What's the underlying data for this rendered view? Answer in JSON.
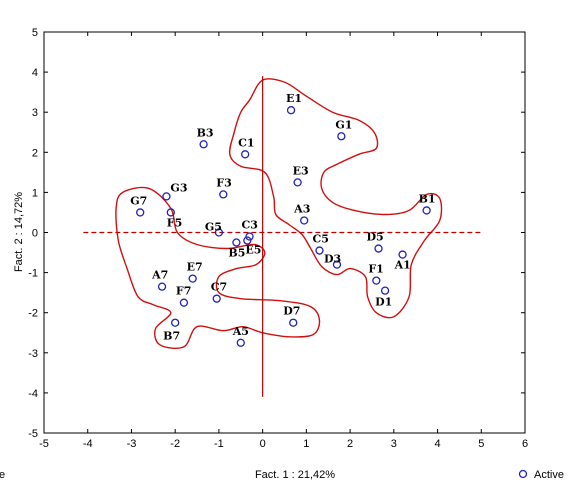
{
  "chart_data": {
    "type": "scatter",
    "title": "",
    "xlabel": "Fact. 1 : 21,42%",
    "ylabel": "Fact. 2 : 14,72%",
    "xlim": [
      -5,
      6
    ],
    "ylim": [
      -5,
      5
    ],
    "x_ticks": [
      -5,
      -4,
      -3,
      -2,
      -1,
      0,
      1,
      2,
      3,
      4,
      5,
      6
    ],
    "y_ticks": [
      -5,
      -4,
      -3,
      -2,
      -1,
      0,
      1,
      2,
      3,
      4,
      5
    ],
    "grid": false,
    "legend": {
      "placement": "bottom-right",
      "entries": [
        "Active"
      ]
    },
    "left_fragment": "e",
    "series": [
      {
        "name": "Active",
        "color": "#2020c0",
        "points": [
          {
            "label": "E1",
            "x": 0.65,
            "y": 3.05
          },
          {
            "label": "G1",
            "x": 1.8,
            "y": 2.4
          },
          {
            "label": "B3",
            "x": -1.35,
            "y": 2.2
          },
          {
            "label": "C1",
            "x": -0.4,
            "y": 1.95
          },
          {
            "label": "E3",
            "x": 0.8,
            "y": 1.25
          },
          {
            "label": "G3",
            "x": -2.2,
            "y": 0.9
          },
          {
            "label": "F3",
            "x": -0.9,
            "y": 0.95
          },
          {
            "label": "B1",
            "x": 3.75,
            "y": 0.55
          },
          {
            "label": "G7",
            "x": -2.8,
            "y": 0.5
          },
          {
            "label": "F5",
            "x": -2.1,
            "y": 0.5
          },
          {
            "label": "A3",
            "x": 0.95,
            "y": 0.3
          },
          {
            "label": "G5",
            "x": -1.0,
            "y": 0.0
          },
          {
            "label": "C3",
            "x": -0.3,
            "y": -0.1
          },
          {
            "label": "B5",
            "x": -0.6,
            "y": -0.25
          },
          {
            "label": "E5",
            "x": -0.35,
            "y": -0.2
          },
          {
            "label": "C5",
            "x": 1.3,
            "y": -0.45
          },
          {
            "label": "D3",
            "x": 1.7,
            "y": -0.8
          },
          {
            "label": "D5",
            "x": 2.65,
            "y": -0.4
          },
          {
            "label": "A1",
            "x": 3.2,
            "y": -0.55
          },
          {
            "label": "F1",
            "x": 2.6,
            "y": -1.2
          },
          {
            "label": "D1",
            "x": 2.8,
            "y": -1.45
          },
          {
            "label": "E7",
            "x": -1.6,
            "y": -1.15
          },
          {
            "label": "A7",
            "x": -2.3,
            "y": -1.35
          },
          {
            "label": "F7",
            "x": -1.8,
            "y": -1.75
          },
          {
            "label": "C7",
            "x": -1.05,
            "y": -1.65
          },
          {
            "label": "B7",
            "x": -2.0,
            "y": -2.25
          },
          {
            "label": "D7",
            "x": 0.7,
            "y": -2.25
          },
          {
            "label": "A5",
            "x": -0.5,
            "y": -2.75
          }
        ]
      }
    ],
    "reference_lines": {
      "x": 0,
      "y": 0,
      "color": "#c00000"
    },
    "cluster_outline_color": "#d01010",
    "clusters": [
      [
        [
          -0.3,
          3.3
        ],
        [
          0,
          3.8
        ],
        [
          0.5,
          3.75
        ],
        [
          1.0,
          3.4
        ],
        [
          1.6,
          3.0
        ],
        [
          2.2,
          2.8
        ],
        [
          2.55,
          2.5
        ],
        [
          2.6,
          2.1
        ],
        [
          2.2,
          1.95
        ],
        [
          1.7,
          1.7
        ],
        [
          1.4,
          1.5
        ],
        [
          1.35,
          1.1
        ],
        [
          1.6,
          0.75
        ],
        [
          2.1,
          0.55
        ],
        [
          2.8,
          0.45
        ],
        [
          3.35,
          0.55
        ],
        [
          3.75,
          0.95
        ],
        [
          4.05,
          0.85
        ],
        [
          4.05,
          0.3
        ],
        [
          3.7,
          -0.2
        ],
        [
          3.4,
          -0.8
        ],
        [
          3.35,
          -1.6
        ],
        [
          3.0,
          -2.1
        ],
        [
          2.6,
          -2.0
        ],
        [
          2.4,
          -1.6
        ],
        [
          2.35,
          -1.1
        ],
        [
          2.0,
          -0.9
        ],
        [
          1.7,
          -1.05
        ],
        [
          1.35,
          -0.85
        ],
        [
          1.1,
          -0.4
        ],
        [
          0.9,
          -0.05
        ],
        [
          0.6,
          0.2
        ],
        [
          0.3,
          0.45
        ],
        [
          0.25,
          0.9
        ],
        [
          0.05,
          1.5
        ],
        [
          -0.5,
          1.65
        ],
        [
          -0.75,
          1.95
        ],
        [
          -0.65,
          2.5
        ],
        [
          -0.5,
          3.0
        ]
      ],
      [
        [
          -3.2,
          1.0
        ],
        [
          -2.6,
          1.1
        ],
        [
          -2.1,
          0.6
        ],
        [
          -1.95,
          0.0
        ],
        [
          -1.5,
          -0.3
        ],
        [
          -0.8,
          -0.4
        ],
        [
          -0.2,
          -0.3
        ],
        [
          0.05,
          -0.5
        ],
        [
          -0.15,
          -0.8
        ],
        [
          -0.6,
          -0.9
        ],
        [
          -1.0,
          -1.1
        ],
        [
          -1.0,
          -1.5
        ],
        [
          -0.5,
          -1.65
        ],
        [
          0.4,
          -1.7
        ],
        [
          1.1,
          -1.85
        ],
        [
          1.3,
          -2.2
        ],
        [
          1.15,
          -2.55
        ],
        [
          0.6,
          -2.6
        ],
        [
          0.0,
          -2.5
        ],
        [
          -0.45,
          -2.35
        ],
        [
          -0.9,
          -2.45
        ],
        [
          -1.5,
          -2.35
        ],
        [
          -1.8,
          -2.85
        ],
        [
          -2.35,
          -2.8
        ],
        [
          -2.45,
          -2.4
        ],
        [
          -2.1,
          -2.0
        ],
        [
          -2.5,
          -1.8
        ],
        [
          -2.85,
          -1.6
        ],
        [
          -3.1,
          -0.9
        ],
        [
          -3.3,
          -0.2
        ],
        [
          -3.35,
          0.6
        ]
      ]
    ]
  }
}
